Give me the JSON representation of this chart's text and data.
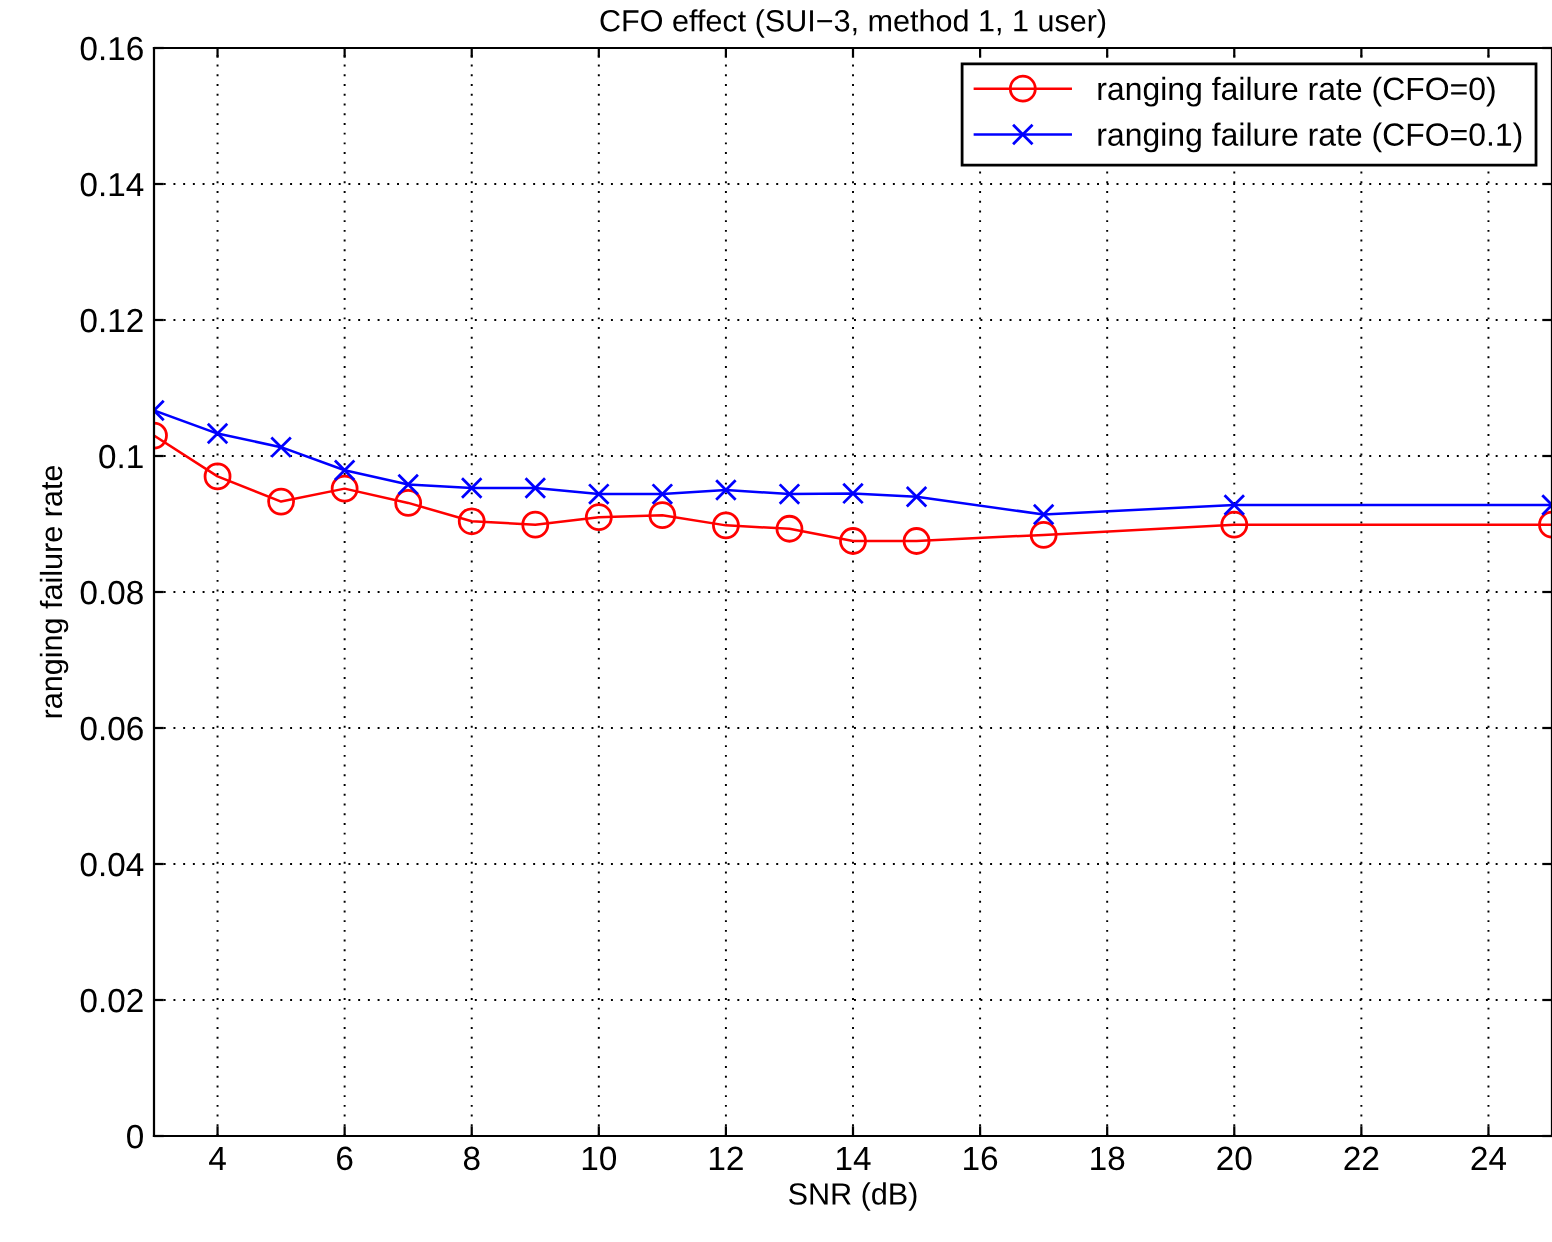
{
  "chart_data": {
    "type": "line",
    "title": "CFO effect (SUI−3, method 1, 1 user)",
    "xlabel": "SNR (dB)",
    "ylabel": "ranging failure rate",
    "x": [
      3,
      4,
      5,
      6,
      7,
      8,
      9,
      10,
      11,
      12,
      13,
      14,
      15,
      17,
      20,
      25
    ],
    "series": [
      {
        "name": "ranging failure rate (CFO=0)",
        "color": "#ff0000",
        "marker": "circle",
        "values": [
          0.103,
          0.097,
          0.0933,
          0.0952,
          0.0931,
          0.0904,
          0.0899,
          0.091,
          0.0913,
          0.0898,
          0.0893,
          0.0875,
          0.0875,
          0.0884,
          0.0899,
          0.0899
        ]
      },
      {
        "name": "ranging failure rate (CFO=0.1)",
        "color": "#0000ff",
        "marker": "cross",
        "values": [
          0.1067,
          0.1033,
          0.1013,
          0.0979,
          0.0958,
          0.0953,
          0.0953,
          0.0944,
          0.0944,
          0.095,
          0.0944,
          0.0945,
          0.094,
          0.0914,
          0.0928,
          0.0928
        ]
      }
    ],
    "xlim": [
      3,
      25
    ],
    "xticks": [
      4,
      6,
      8,
      10,
      12,
      14,
      16,
      18,
      20,
      22,
      24
    ],
    "ylim": [
      0,
      0.16
    ],
    "yticks": [
      0,
      0.02,
      0.04,
      0.06,
      0.08,
      0.1,
      0.12,
      0.14,
      0.16
    ],
    "grid": true,
    "legend": "top right",
    "line_style": "solid"
  }
}
